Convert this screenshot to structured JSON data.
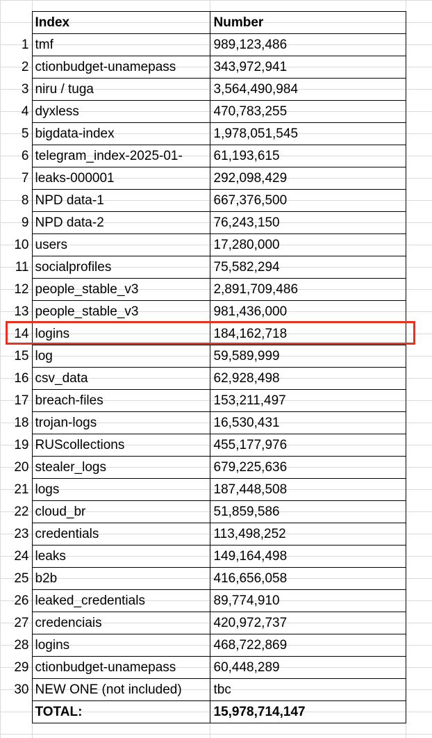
{
  "table": {
    "headers": {
      "index": "Index",
      "number": "Number"
    },
    "rows": [
      {
        "n": "1",
        "index": "tmf",
        "number": "989,123,486"
      },
      {
        "n": "2",
        "index": "ctionbudget-unamepass",
        "number": "343,972,941"
      },
      {
        "n": "3",
        "index": "niru / tuga",
        "number": "3,564,490,984"
      },
      {
        "n": "4",
        "index": "dyxless",
        "number": "470,783,255"
      },
      {
        "n": "5",
        "index": "bigdata-index",
        "number": "1,978,051,545"
      },
      {
        "n": "6",
        "index": "telegram_index-2025-01-",
        "number": "61,193,615"
      },
      {
        "n": "7",
        "index": "leaks-000001",
        "number": "292,098,429"
      },
      {
        "n": "8",
        "index": "NPD data-1",
        "number": "667,376,500"
      },
      {
        "n": "9",
        "index": "NPD data-2",
        "number": "76,243,150"
      },
      {
        "n": "10",
        "index": "users",
        "number": "17,280,000"
      },
      {
        "n": "11",
        "index": "socialprofiles",
        "number": "75,582,294"
      },
      {
        "n": "12",
        "index": "people_stable_v3",
        "number": "2,891,709,486"
      },
      {
        "n": "13",
        "index": "people_stable_v3",
        "number": "981,436,000"
      },
      {
        "n": "14",
        "index": "logins",
        "number": "184,162,718"
      },
      {
        "n": "15",
        "index": "log",
        "number": "59,589,999"
      },
      {
        "n": "16",
        "index": "csv_data",
        "number": "62,928,498"
      },
      {
        "n": "17",
        "index": "breach-files",
        "number": "153,211,497"
      },
      {
        "n": "18",
        "index": "trojan-logs",
        "number": "16,530,431"
      },
      {
        "n": "19",
        "index": "RUScollections",
        "number": "455,177,976"
      },
      {
        "n": "20",
        "index": "stealer_logs",
        "number": "679,225,636"
      },
      {
        "n": "21",
        "index": "logs",
        "number": "187,448,508"
      },
      {
        "n": "22",
        "index": "cloud_br",
        "number": "51,859,586"
      },
      {
        "n": "23",
        "index": "credentials",
        "number": "113,498,252"
      },
      {
        "n": "24",
        "index": "leaks",
        "number": "149,164,498"
      },
      {
        "n": "25",
        "index": "b2b",
        "number": "416,656,058"
      },
      {
        "n": "26",
        "index": "leaked_credentials",
        "number": "89,774,910"
      },
      {
        "n": "27",
        "index": "credenciais",
        "number": "420,972,737"
      },
      {
        "n": "28",
        "index": "logins",
        "number": "468,722,869"
      },
      {
        "n": "29",
        "index": "ctionbudget-unamepass",
        "number": "60,448,289"
      },
      {
        "n": "30",
        "index": "NEW ONE (not included)",
        "number": "tbc"
      }
    ],
    "total": {
      "label": "TOTAL:",
      "value": "15,978,714,147"
    }
  },
  "highlight": {
    "row": "14",
    "color": "#e8321e"
  }
}
